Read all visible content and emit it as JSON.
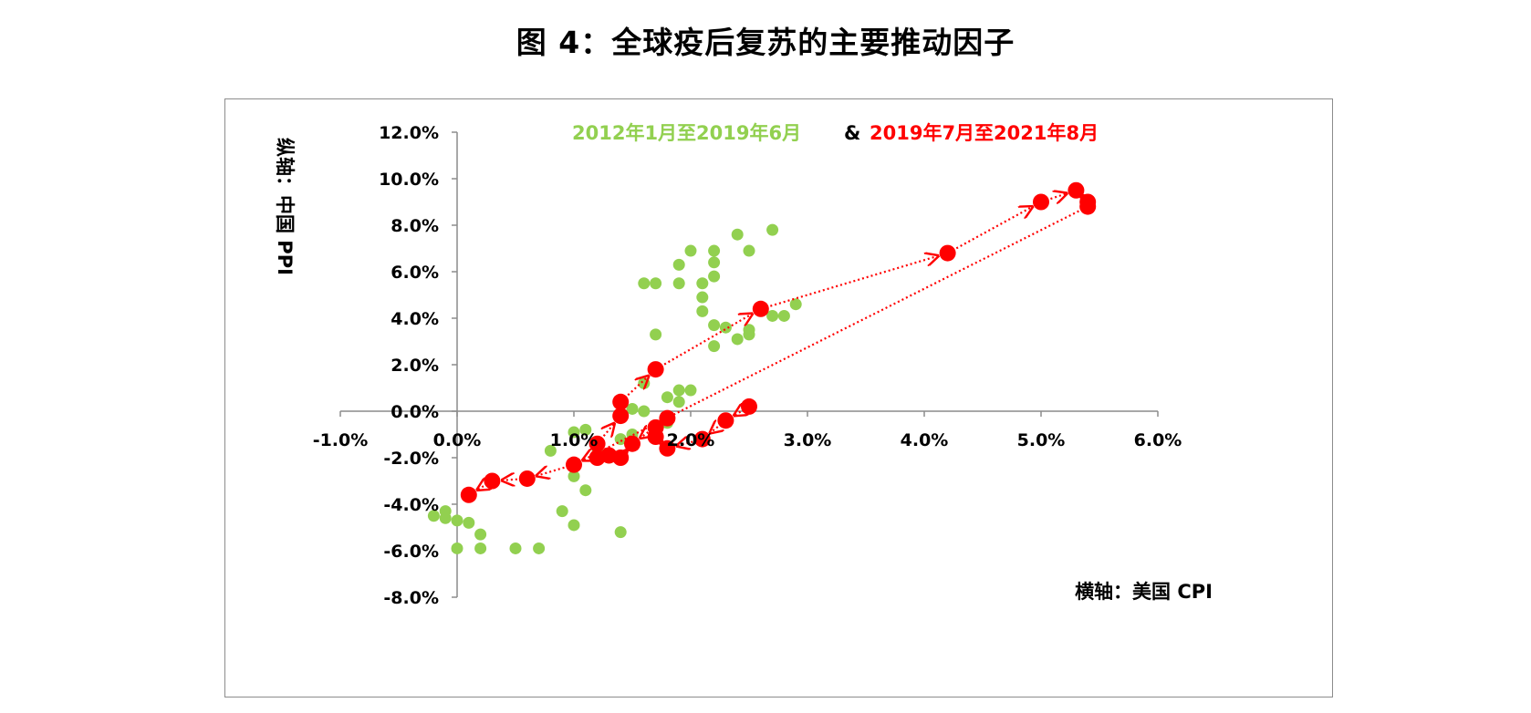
{
  "title": "图 4：全球疫后复苏的主要推动因子",
  "chart_data": {
    "type": "scatter",
    "title": "图 4：全球疫后复苏的主要推动因子",
    "xlabel": "横轴：美国 CPI",
    "ylabel": "纵轴：中国 PPI",
    "xlim": [
      -1.0,
      6.0
    ],
    "ylim": [
      -8.0,
      12.0
    ],
    "x_ticks": [
      "-1.0%",
      "0.0%",
      "1.0%",
      "2.0%",
      "3.0%",
      "4.0%",
      "5.0%",
      "6.0%"
    ],
    "y_ticks": [
      "12.0%",
      "10.0%",
      "8.0%",
      "6.0%",
      "4.0%",
      "2.0%",
      "0.0%",
      "-2.0%",
      "-4.0%",
      "-6.0%",
      "-8.0%"
    ],
    "legend": {
      "series1": "2012年1月至2019年6月",
      "separator": "&",
      "series2": "2019年7月至2021年8月"
    },
    "series": [
      {
        "name": "2012年1月至2019年6月",
        "color": "#92d050",
        "style": "points",
        "points": [
          [
            -0.2,
            -4.5
          ],
          [
            -0.1,
            -4.3
          ],
          [
            -0.1,
            -4.6
          ],
          [
            0.0,
            -4.7
          ],
          [
            0.1,
            -4.8
          ],
          [
            0.2,
            -5.3
          ],
          [
            0.2,
            -5.9
          ],
          [
            0.0,
            -5.9
          ],
          [
            0.5,
            -5.9
          ],
          [
            0.7,
            -5.9
          ],
          [
            0.8,
            -1.7
          ],
          [
            0.9,
            -4.3
          ],
          [
            1.0,
            -4.9
          ],
          [
            1.0,
            -2.8
          ],
          [
            1.1,
            -3.4
          ],
          [
            1.1,
            -0.8
          ],
          [
            1.2,
            -1.6
          ],
          [
            1.2,
            -2.0
          ],
          [
            1.3,
            -2.0
          ],
          [
            1.4,
            -5.2
          ],
          [
            1.4,
            -1.2
          ],
          [
            1.5,
            -1.0
          ],
          [
            1.5,
            0.1
          ],
          [
            1.6,
            0.0
          ],
          [
            1.6,
            1.2
          ],
          [
            1.6,
            5.5
          ],
          [
            1.7,
            5.5
          ],
          [
            1.7,
            3.3
          ],
          [
            1.8,
            0.6
          ],
          [
            1.9,
            0.9
          ],
          [
            1.9,
            0.4
          ],
          [
            2.0,
            0.9
          ],
          [
            1.9,
            6.3
          ],
          [
            1.9,
            5.5
          ],
          [
            2.0,
            6.9
          ],
          [
            2.1,
            4.9
          ],
          [
            2.1,
            4.3
          ],
          [
            2.1,
            5.5
          ],
          [
            2.2,
            6.9
          ],
          [
            2.2,
            6.4
          ],
          [
            2.2,
            5.8
          ],
          [
            2.2,
            3.7
          ],
          [
            2.2,
            2.8
          ],
          [
            2.3,
            3.6
          ],
          [
            2.4,
            3.1
          ],
          [
            2.4,
            7.6
          ],
          [
            2.5,
            6.9
          ],
          [
            2.5,
            3.3
          ],
          [
            2.5,
            3.5
          ],
          [
            2.7,
            7.8
          ],
          [
            2.7,
            4.1
          ],
          [
            2.8,
            4.1
          ],
          [
            2.9,
            4.6
          ],
          [
            1.0,
            -0.9
          ],
          [
            1.8,
            -0.5
          ]
        ]
      },
      {
        "name": "2019年7月至2021年8月",
        "color": "#ff0000",
        "style": "dotted-arrow-path",
        "points": [
          [
            2.5,
            0.2
          ],
          [
            2.3,
            -0.4
          ],
          [
            2.1,
            -1.2
          ],
          [
            1.8,
            -1.6
          ],
          [
            1.7,
            -1.1
          ],
          [
            1.7,
            -0.7
          ],
          [
            1.8,
            -0.3
          ],
          [
            1.5,
            -1.4
          ],
          [
            1.4,
            -2.0
          ],
          [
            1.3,
            -1.9
          ],
          [
            1.2,
            -2.0
          ],
          [
            1.2,
            -1.4
          ],
          [
            1.4,
            -0.2
          ],
          [
            1.4,
            0.4
          ],
          [
            1.7,
            1.8
          ],
          [
            2.6,
            4.4
          ],
          [
            4.2,
            6.8
          ],
          [
            5.0,
            9.0
          ],
          [
            5.3,
            9.5
          ],
          [
            5.4,
            9.0
          ],
          [
            5.4,
            8.8
          ],
          [
            1.0,
            -2.3
          ],
          [
            0.6,
            -2.9
          ],
          [
            0.3,
            -3.0
          ],
          [
            0.1,
            -3.6
          ]
        ]
      }
    ]
  }
}
